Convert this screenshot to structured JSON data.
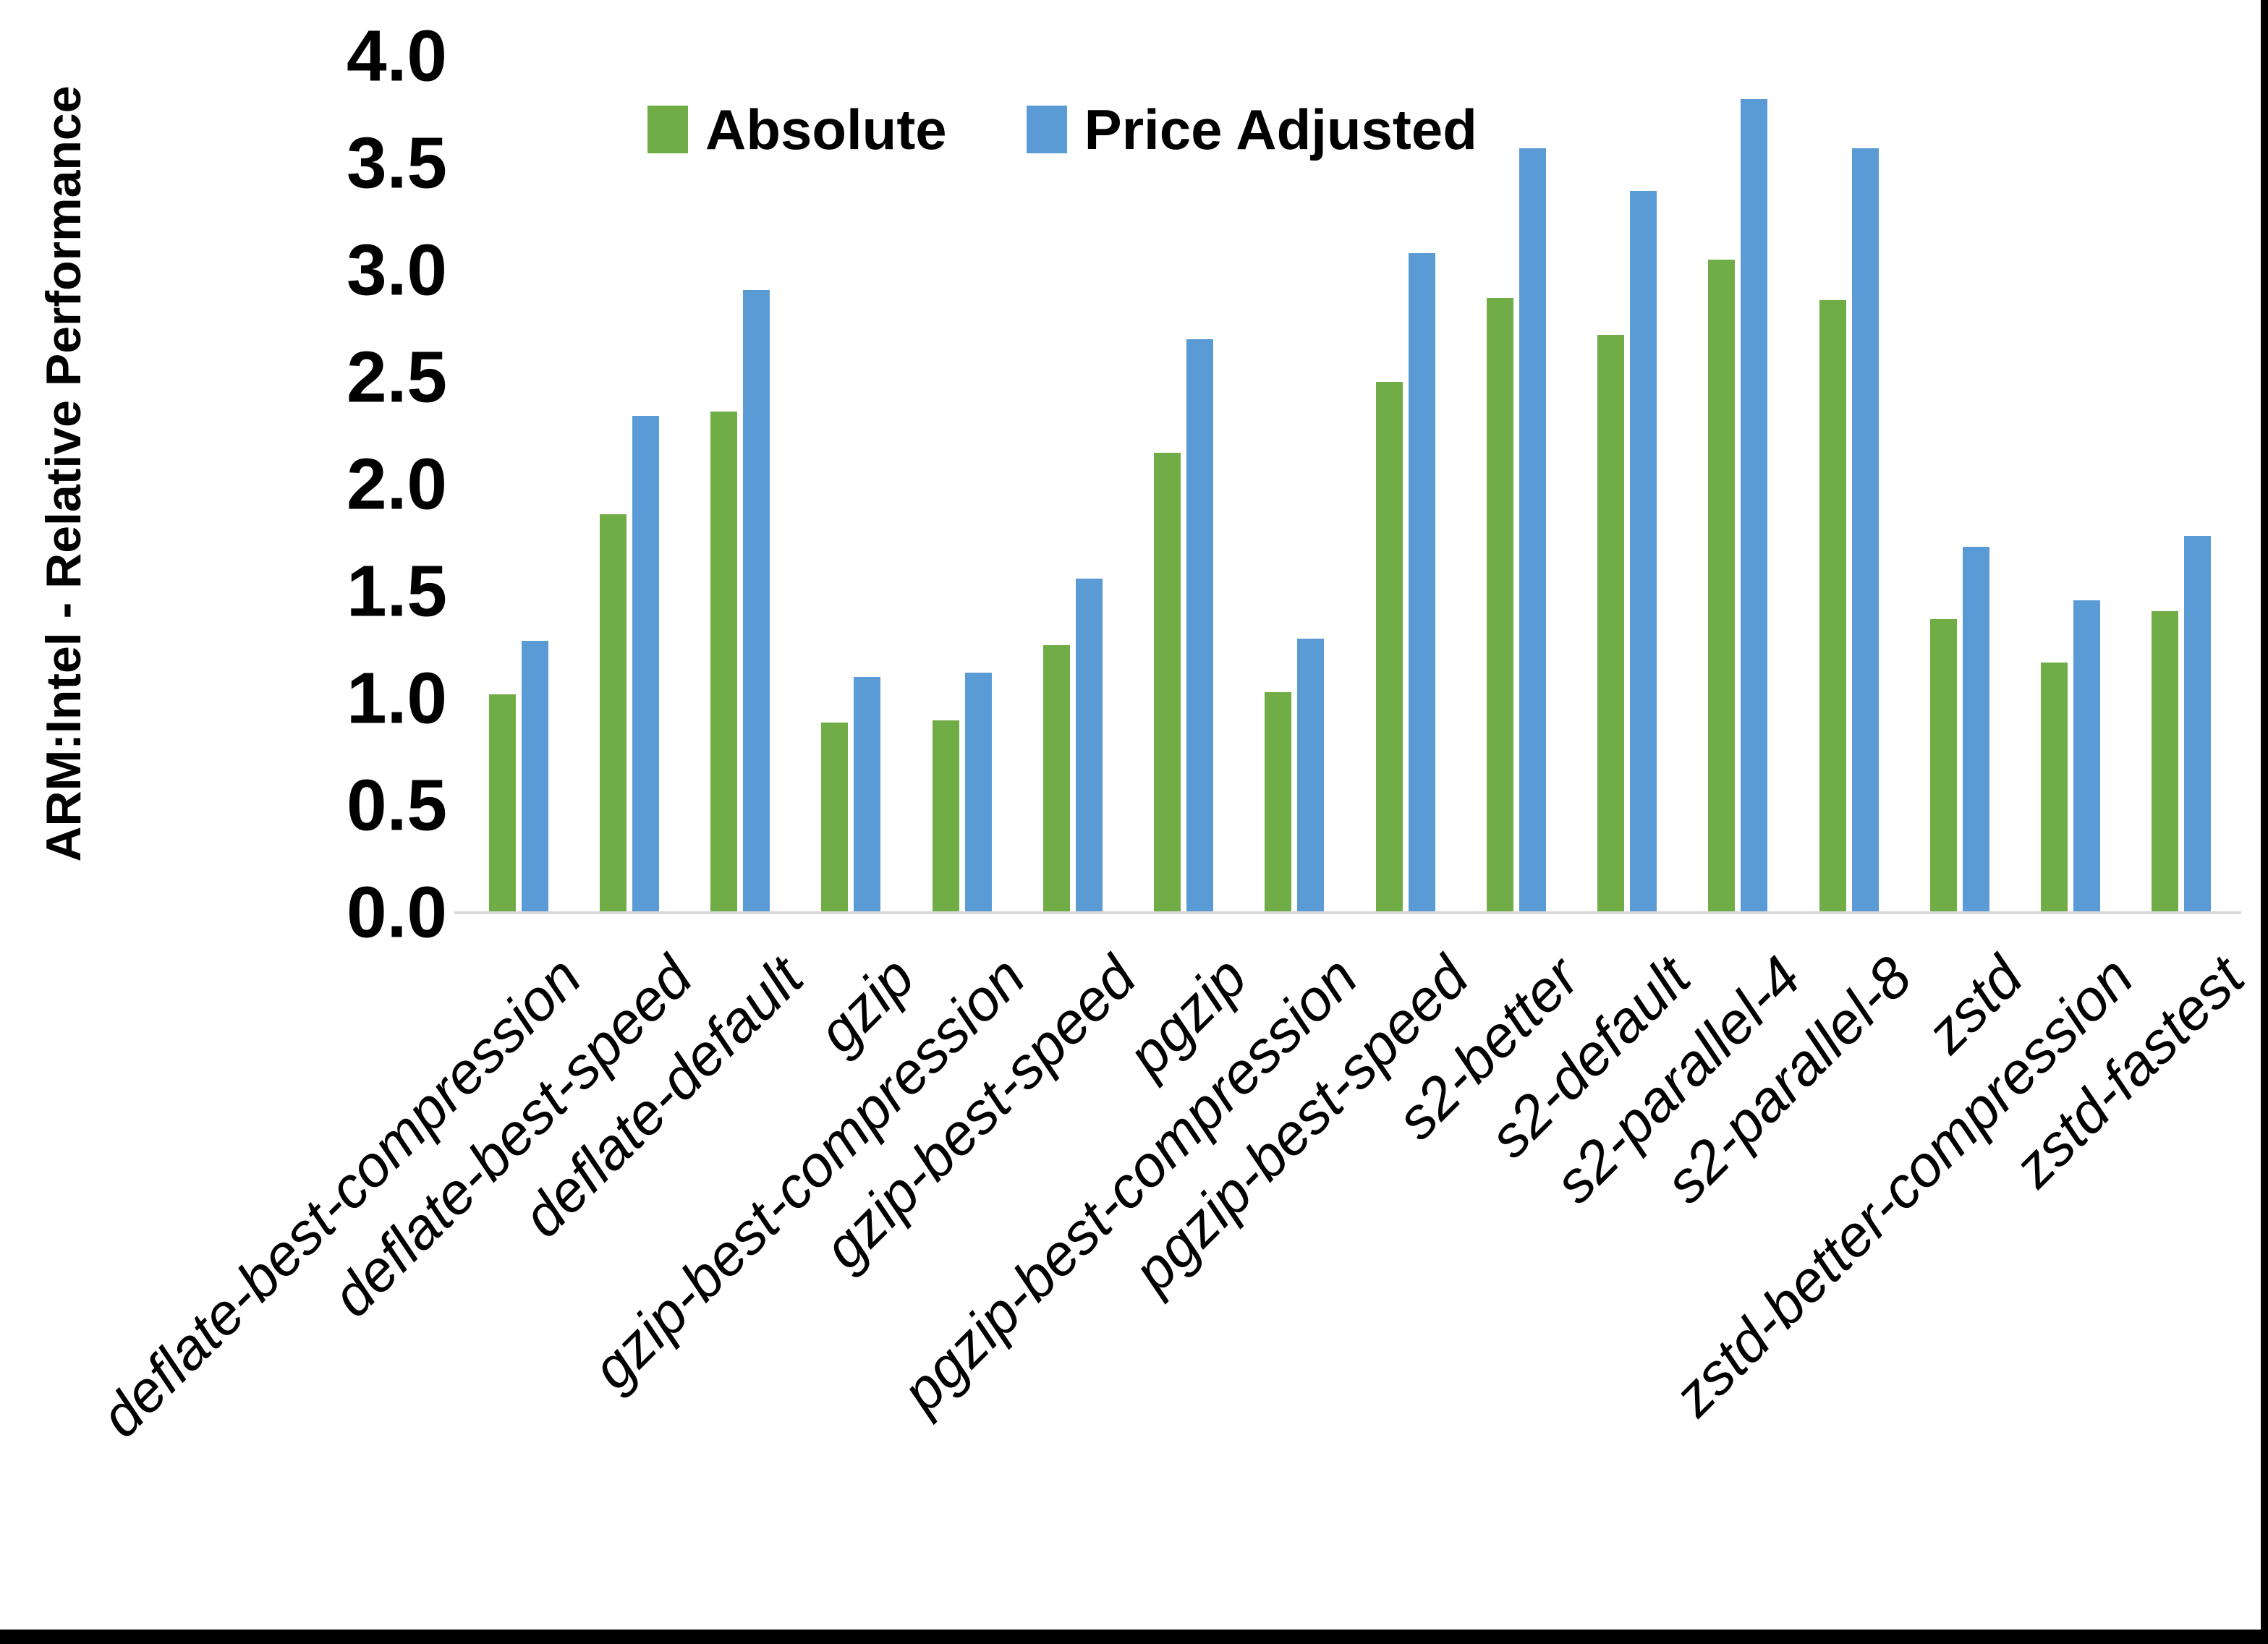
{
  "chart_data": {
    "type": "bar",
    "title": "",
    "xlabel": "",
    "ylabel": "ARM:Intel - Relative Performance",
    "ylim": [
      0.0,
      4.0
    ],
    "ytick_step": 0.5,
    "yticks": [
      "0.0",
      "0.5",
      "1.0",
      "1.5",
      "2.0",
      "2.5",
      "3.0",
      "3.5",
      "4.0"
    ],
    "grid": false,
    "legend_position": "top",
    "categories": [
      "deflate-best-compression",
      "deflate-best-speed",
      "deflate-default",
      "gzip",
      "gzip-best-compression",
      "gzip-best-speed",
      "pgzip",
      "pgzip-best-compression",
      "pgzip-best-speed",
      "s2-better",
      "s2-default",
      "s2-parallel-4",
      "s2-parallel-8",
      "zstd",
      "zstd-better-compression",
      "zstd-fastest"
    ],
    "series": [
      {
        "name": "Absolute",
        "color": "#70AD47",
        "values": [
          1.02,
          1.86,
          2.34,
          0.89,
          0.9,
          1.25,
          2.15,
          1.03,
          2.48,
          2.87,
          2.7,
          3.05,
          2.86,
          1.37,
          1.17,
          1.41
        ]
      },
      {
        "name": "Price Adjusted",
        "color": "#5B9BD5",
        "values": [
          1.27,
          2.32,
          2.91,
          1.1,
          1.12,
          1.56,
          2.68,
          1.28,
          3.08,
          3.57,
          3.37,
          3.8,
          3.57,
          1.71,
          1.46,
          1.76
        ]
      }
    ],
    "axis_line_color": "#D9D9D9",
    "text_color": "#000000"
  }
}
